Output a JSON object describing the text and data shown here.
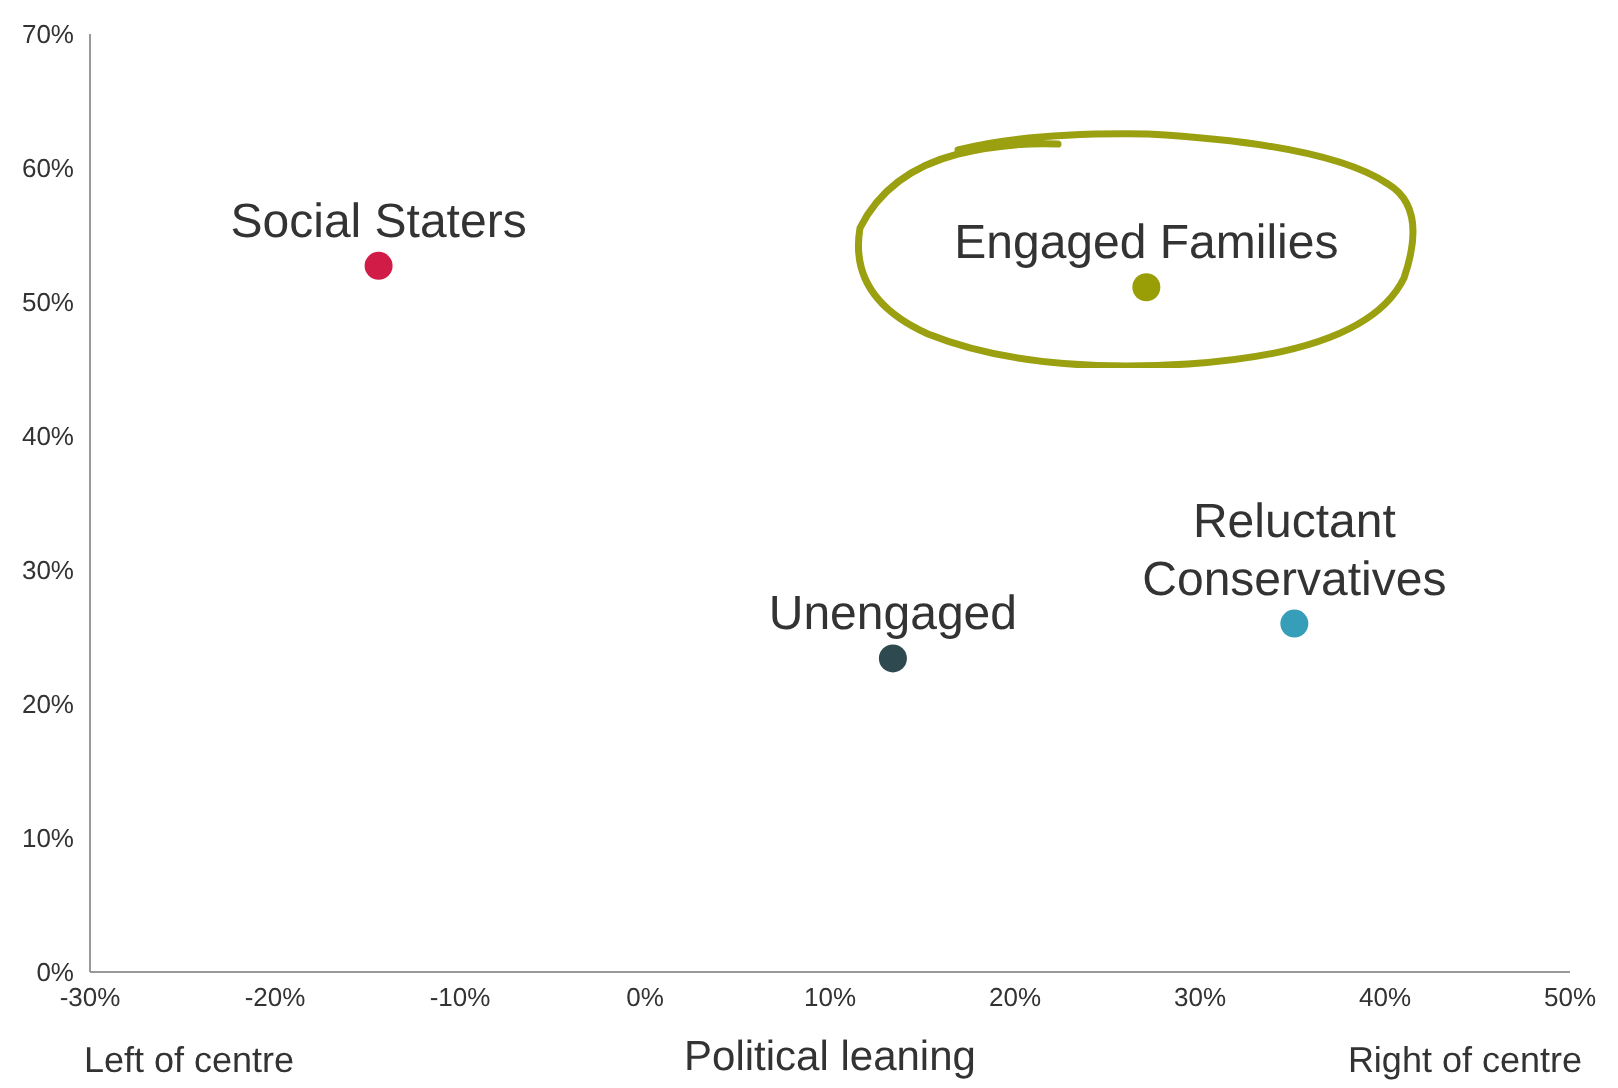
{
  "chart_data": {
    "type": "scatter",
    "xlabel": "Political leaning",
    "annotations": [
      "Left of centre",
      "Right of centre"
    ],
    "xlim": [
      -30,
      50
    ],
    "xticks": [
      {
        "value": -30,
        "label": "-30%"
      },
      {
        "value": -20,
        "label": "-20%"
      },
      {
        "value": -10,
        "label": "-10%"
      },
      {
        "value": 0,
        "label": "0%"
      },
      {
        "value": 10,
        "label": "10%"
      },
      {
        "value": 20,
        "label": "20%"
      },
      {
        "value": 30,
        "label": "30%"
      },
      {
        "value": 40,
        "label": "40%"
      },
      {
        "value": 50,
        "label": "50%"
      }
    ],
    "ylim": [
      0,
      70
    ],
    "yticks": [
      {
        "value": 0,
        "label": "0%"
      },
      {
        "value": 10,
        "label": "10%"
      },
      {
        "value": 20,
        "label": "20%"
      },
      {
        "value": 30,
        "label": "30%"
      },
      {
        "value": 40,
        "label": "40%"
      },
      {
        "value": 50,
        "label": "50%"
      },
      {
        "value": 60,
        "label": "60%"
      },
      {
        "value": 70,
        "label": "70%"
      }
    ],
    "grid": false,
    "marker": "circle",
    "series": [
      {
        "name": "Social Staters",
        "color": "#d01c46",
        "x": [
          -14.4
        ],
        "values": [
          52.7
        ]
      },
      {
        "name": "Engaged Families",
        "color": "#9a9e06",
        "x": [
          27.1
        ],
        "values": [
          51.1
        ]
      },
      {
        "name": "Unengaged",
        "color": "#2e4a50",
        "x": [
          13.4
        ],
        "values": [
          23.4
        ]
      },
      {
        "name": "Reluctant Conservatives",
        "color": "#369eb8",
        "x": [
          35.1
        ],
        "values": [
          26
        ]
      }
    ]
  }
}
